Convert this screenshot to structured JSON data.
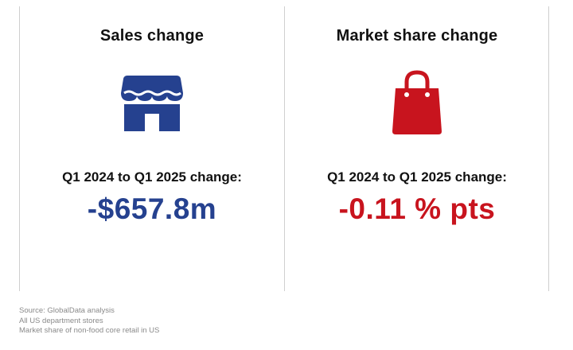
{
  "sales": {
    "title": "Sales change",
    "period_label": "Q1 2024 to Q1 2025 change:",
    "value": "-$657.8m",
    "icon": "store-icon",
    "color": "#25418f"
  },
  "market_share": {
    "title": "Market share change",
    "period_label": "Q1 2024 to Q1 2025 change:",
    "value": "-0.11 % pts",
    "icon": "shopping-bag-icon",
    "color": "#c8141e"
  },
  "footnotes": {
    "source": "Source: GlobalData analysis",
    "line2": "All US department stores",
    "line3": "Market share of non-food core retail in US"
  }
}
